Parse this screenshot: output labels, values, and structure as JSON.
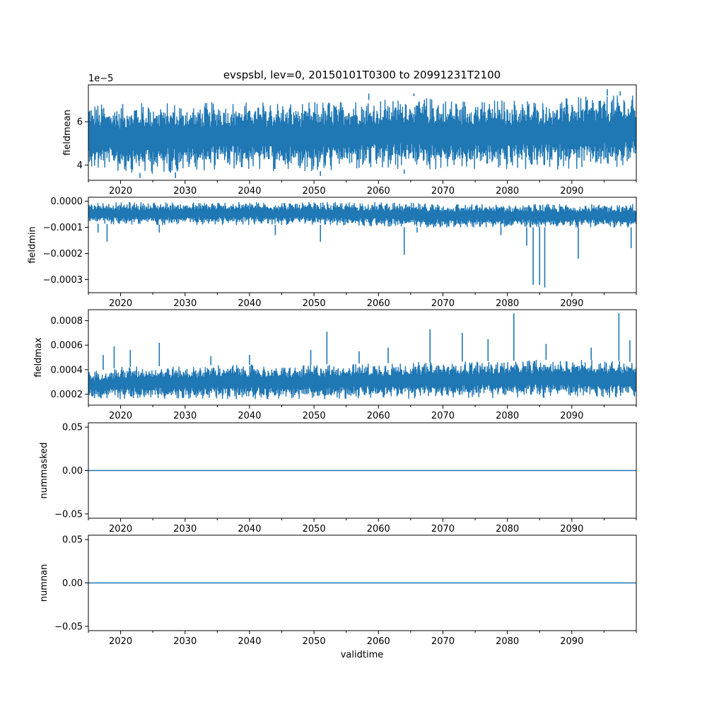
{
  "title": "evspsbl, lev=0, 20150101T0300 to 20991231T2100",
  "xlabel": "validtime",
  "colors": {
    "series": "#1f77b4",
    "axes": "#000000",
    "background": "#ffffff"
  },
  "chart_data": [
    {
      "type": "line",
      "ylabel": "fieldmean",
      "offset_text": "1e−5",
      "xlim": [
        2015.0,
        2100.0
      ],
      "ylim": [
        3.3,
        7.7
      ],
      "yticks": [
        4,
        6
      ],
      "ytick_labels": [
        "4",
        "6"
      ],
      "xticks": [
        2020,
        2030,
        2040,
        2050,
        2060,
        2070,
        2080,
        2090
      ],
      "xtick_labels": [
        "2020",
        "2030",
        "2040",
        "2050",
        "2060",
        "2070",
        "2080",
        "2090"
      ],
      "envelope": {
        "x": [
          2015,
          2020,
          2025,
          2030,
          2035,
          2040,
          2045,
          2050,
          2055,
          2060,
          2065,
          2070,
          2075,
          2080,
          2085,
          2090,
          2095,
          2100
        ],
        "low": [
          3.8,
          3.7,
          3.6,
          3.7,
          3.8,
          3.8,
          3.7,
          3.7,
          3.8,
          3.8,
          3.8,
          3.8,
          3.8,
          3.8,
          3.8,
          3.8,
          3.8,
          3.9
        ],
        "high": [
          6.8,
          6.8,
          6.9,
          6.8,
          6.9,
          6.9,
          6.9,
          6.9,
          7.0,
          7.0,
          7.2,
          7.0,
          7.0,
          7.0,
          7.0,
          7.1,
          7.2,
          7.2
        ]
      },
      "spikes": [
        {
          "x": 2023.0,
          "y": 3.4
        },
        {
          "x": 2028.5,
          "y": 3.4
        },
        {
          "x": 2051.0,
          "y": 3.5
        },
        {
          "x": 2064.0,
          "y": 3.6
        },
        {
          "x": 2058.5,
          "y": 7.3
        },
        {
          "x": 2065.5,
          "y": 7.3
        },
        {
          "x": 2095.5,
          "y": 7.5
        },
        {
          "x": 2097.5,
          "y": 7.4
        }
      ]
    },
    {
      "type": "line",
      "ylabel": "fieldmin",
      "offset_text": "",
      "xlim": [
        2015.0,
        2100.0
      ],
      "ylim": [
        -0.00035,
        1.5e-05
      ],
      "yticks": [
        0.0,
        -0.0001,
        -0.0002,
        -0.0003
      ],
      "ytick_labels": [
        "0.0000",
        "−0.0001",
        "−0.0002",
        "−0.0003"
      ],
      "xticks": [
        2020,
        2030,
        2040,
        2050,
        2060,
        2070,
        2080,
        2090
      ],
      "xtick_labels": [
        "2020",
        "2030",
        "2040",
        "2050",
        "2060",
        "2070",
        "2080",
        "2090"
      ],
      "envelope": {
        "x": [
          2015,
          2020,
          2025,
          2030,
          2035,
          2040,
          2045,
          2050,
          2055,
          2060,
          2065,
          2070,
          2075,
          2080,
          2085,
          2090,
          2095,
          2100
        ],
        "low": [
          -8.5e-05,
          -9e-05,
          -9e-05,
          -9e-05,
          -9e-05,
          -9e-05,
          -9e-05,
          -9e-05,
          -9.5e-05,
          -9.5e-05,
          -0.0001,
          -0.0001,
          -0.0001,
          -0.0001,
          -0.0001,
          -0.0001,
          -0.0001,
          -0.0001
        ],
        "high": [
          -5e-06,
          -5e-06,
          -5e-06,
          -5e-06,
          -5e-06,
          -4e-06,
          -5e-06,
          -5e-06,
          -5e-06,
          -5e-06,
          -8e-06,
          -1e-05,
          -1.2e-05,
          -1.2e-05,
          -1.2e-05,
          -1.2e-05,
          -1.2e-05,
          -1e-05
        ]
      },
      "spikes": [
        {
          "x": 2016.5,
          "y": -0.00012
        },
        {
          "x": 2017.9,
          "y": -0.000155
        },
        {
          "x": 2026.0,
          "y": -0.00012
        },
        {
          "x": 2044.0,
          "y": -0.00013
        },
        {
          "x": 2051.0,
          "y": -0.000155
        },
        {
          "x": 2064.0,
          "y": -0.000205
        },
        {
          "x": 2066.0,
          "y": -0.00012
        },
        {
          "x": 2079.0,
          "y": -0.00013
        },
        {
          "x": 2083.0,
          "y": -0.00017
        },
        {
          "x": 2084.0,
          "y": -0.00032
        },
        {
          "x": 2085.0,
          "y": -0.00032
        },
        {
          "x": 2085.8,
          "y": -0.00033
        },
        {
          "x": 2091.0,
          "y": -0.00022
        },
        {
          "x": 2099.2,
          "y": -0.00018
        }
      ]
    },
    {
      "type": "line",
      "ylabel": "fieldmax",
      "offset_text": "",
      "xlim": [
        2015.0,
        2100.0
      ],
      "ylim": [
        0.00011,
        0.00089
      ],
      "yticks": [
        0.0002,
        0.0004,
        0.0006,
        0.0008
      ],
      "ytick_labels": [
        "0.0002",
        "0.0004",
        "0.0006",
        "0.0008"
      ],
      "xticks": [
        2020,
        2030,
        2040,
        2050,
        2060,
        2070,
        2080,
        2090
      ],
      "xtick_labels": [
        "2020",
        "2030",
        "2040",
        "2050",
        "2060",
        "2070",
        "2080",
        "2090"
      ],
      "envelope": {
        "x": [
          2015,
          2020,
          2025,
          2030,
          2035,
          2040,
          2045,
          2050,
          2055,
          2060,
          2065,
          2070,
          2075,
          2080,
          2085,
          2090,
          2095,
          2100
        ],
        "low": [
          0.000165,
          0.00016,
          0.00016,
          0.00016,
          0.00016,
          0.00016,
          0.00016,
          0.00016,
          0.00016,
          0.000165,
          0.000165,
          0.00017,
          0.00017,
          0.00017,
          0.00017,
          0.00017,
          0.00017,
          0.00018
        ],
        "high": [
          0.00038,
          0.00042,
          0.00043,
          0.00042,
          0.00044,
          0.00044,
          0.00042,
          0.00044,
          0.00045,
          0.00045,
          0.00046,
          0.00046,
          0.00047,
          0.00047,
          0.00048,
          0.00048,
          0.00048,
          0.00046
        ]
      },
      "spikes": [
        {
          "x": 2017.3,
          "y": 0.00052
        },
        {
          "x": 2019.0,
          "y": 0.00059
        },
        {
          "x": 2021.5,
          "y": 0.00056
        },
        {
          "x": 2026.0,
          "y": 0.00062
        },
        {
          "x": 2034.0,
          "y": 0.00051
        },
        {
          "x": 2040.0,
          "y": 0.00052
        },
        {
          "x": 2049.5,
          "y": 0.00056
        },
        {
          "x": 2052.0,
          "y": 0.00071
        },
        {
          "x": 2057.0,
          "y": 0.00055
        },
        {
          "x": 2061.5,
          "y": 0.00058
        },
        {
          "x": 2068.0,
          "y": 0.00073
        },
        {
          "x": 2073.0,
          "y": 0.0007
        },
        {
          "x": 2077.0,
          "y": 0.00065
        },
        {
          "x": 2081.0,
          "y": 0.00086
        },
        {
          "x": 2086.0,
          "y": 0.00061
        },
        {
          "x": 2093.0,
          "y": 0.00058
        },
        {
          "x": 2097.3,
          "y": 0.00086
        },
        {
          "x": 2099.0,
          "y": 0.00064
        }
      ]
    },
    {
      "type": "line",
      "ylabel": "nummasked",
      "offset_text": "",
      "xlim": [
        2015.0,
        2100.0
      ],
      "ylim": [
        -0.055,
        0.055
      ],
      "yticks": [
        0.05,
        0.0,
        -0.05
      ],
      "ytick_labels": [
        "0.05",
        "0.00",
        "−0.05"
      ],
      "xticks": [
        2020,
        2030,
        2040,
        2050,
        2060,
        2070,
        2080,
        2090
      ],
      "xtick_labels": [
        "2020",
        "2030",
        "2040",
        "2050",
        "2060",
        "2070",
        "2080",
        "2090"
      ],
      "constant": 0.0
    },
    {
      "type": "line",
      "ylabel": "numnan",
      "offset_text": "",
      "xlim": [
        2015.0,
        2100.0
      ],
      "ylim": [
        -0.055,
        0.055
      ],
      "yticks": [
        0.05,
        0.0,
        -0.05
      ],
      "ytick_labels": [
        "0.05",
        "0.00",
        "−0.05"
      ],
      "xticks": [
        2020,
        2030,
        2040,
        2050,
        2060,
        2070,
        2080,
        2090
      ],
      "xtick_labels": [
        "2020",
        "2030",
        "2040",
        "2050",
        "2060",
        "2070",
        "2080",
        "2090"
      ],
      "constant": 0.0
    }
  ]
}
